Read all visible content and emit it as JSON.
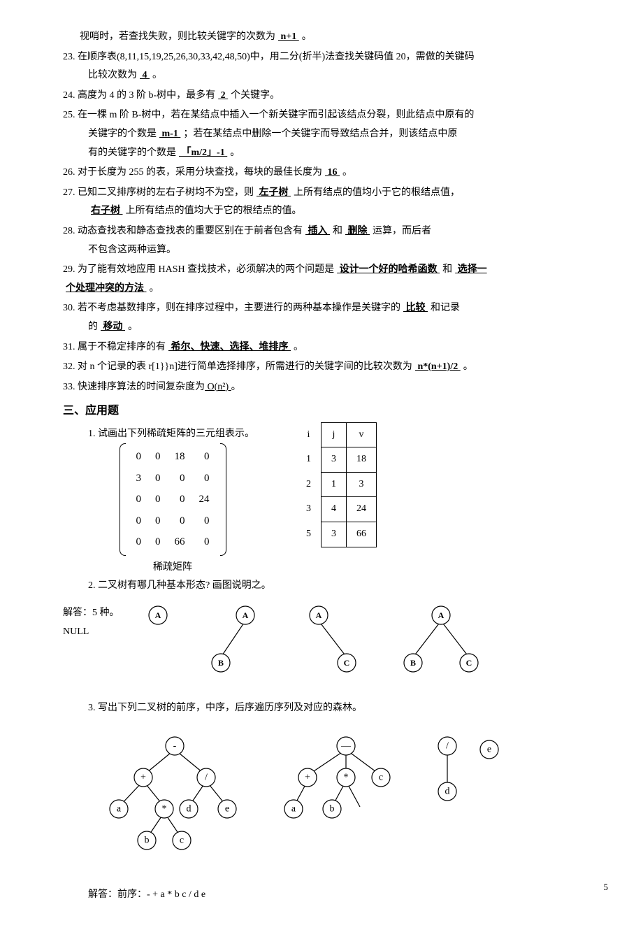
{
  "lines": {
    "l22_cont": "视哨时，若查找失败，则比较关键字的次数为",
    "l22_blank": "    n+1    ",
    "l23a": "23. 在顺序表(8,11,15,19,25,26,30,33,42,48,50)中，用二分(折半)法查找关键码值 20，需做的关键码",
    "l23b": "比较次数为",
    "l23_blank": "    4    ",
    "l24": "24. 高度为 4 的 3 阶 b-树中，最多有",
    "l24_blank": "   2   ",
    "l24_tail": "个关键字。",
    "l25a": "25. 在一棵 m 阶 B-树中，若在某结点中插入一个新关键字而引起该结点分裂，则此结点中原有的",
    "l25b": "关键字的个数是",
    "l25_blank1": "    m-1    ",
    "l25c": "；若在某结点中删除一个关键字而导致结点合并，则该结点中原",
    "l25d": "有的关键字的个数是",
    "l25_blank2": "    「m/2」-1      ",
    "l26": "26. 对于长度为 255 的表，采用分块查找，每块的最佳长度为",
    "l26_blank": "     16     ",
    "l27a": "27. 已知二叉排序树的左右子树均不为空，则",
    "l27_blank1": "   左子树   ",
    "l27b": "上所有结点的值均小于它的根结点值，",
    "l27_blank2": "右子树   ",
    "l27c": "上所有结点的值均大于它的根结点的值。",
    "l28a": "28. 动态查找表和静态查找表的重要区别在于前者包含有",
    "l28_blank1": "   插入   ",
    "l28_mid": "和",
    "l28_blank2": "   删除   ",
    "l28b": "运算，而后者",
    "l28c": "不包含这两种运算。",
    "l29a": "29.  为了能有效地应用 HASH 查找技术，必须解决的两个问题是",
    "l29_blank1": "  设计一个好的哈希函数  ",
    "l29_mid": "和",
    "l29_blank2": "  选择一",
    "l29b": "个处理冲突的方法   ",
    "l30a": "30. 若不考虑基数排序，则在排序过程中，主要进行的两种基本操作是关键字的",
    "l30_blank1": "  比较   ",
    "l30_mid": "和记录",
    "l30b": "的",
    "l30_blank2": "   移动   ",
    "l31": "31. 属于不稳定排序的有",
    "l31_blank": "  希尔、快速、选择、堆排序   ",
    "l32": "32. 对 n 个记录的表 r[1}}n]进行简单选择排序，所需进行的关键字间的比较次数为",
    "l32_blank": "   n*(n+1)/2   ",
    "l33": "33.  快速排序算法的时间复杂度为",
    "l33_blank": "          O(n²)          "
  },
  "section3": "三、应用题",
  "q1": {
    "text": "1.    试画出下列稀疏矩阵的三元组表示。",
    "matrix": [
      [
        0,
        0,
        18,
        0
      ],
      [
        3,
        0,
        0,
        0
      ],
      [
        0,
        0,
        0,
        24
      ],
      [
        0,
        0,
        0,
        0
      ],
      [
        0,
        0,
        66,
        0
      ]
    ],
    "caption": "稀疏矩阵",
    "header": [
      "i",
      "j",
      "v"
    ],
    "triples": [
      [
        1,
        3,
        18
      ],
      [
        2,
        1,
        3
      ],
      [
        3,
        4,
        24
      ],
      [
        5,
        3,
        66
      ]
    ]
  },
  "q2": {
    "text": "2.    二叉树有哪几种基本形态? 画图说明之。",
    "ans": "解答：5 种。",
    "null": "NULL",
    "labels": {
      "A": "A",
      "B": "B",
      "C": "C"
    }
  },
  "q3": {
    "text": "3.    写出下列二叉树的前序，中序，后序遍历序列及对应的森林。",
    "labels": {
      "minus": "-",
      "plus": "+",
      "slash": "/",
      "a": "a",
      "star": "*",
      "d": "d",
      "e": "e",
      "b": "b",
      "c": "c",
      "dash": "—"
    },
    "answer": "解答：前序：-  +  a  *  b  c  /  d  e"
  },
  "pageNum": "5"
}
